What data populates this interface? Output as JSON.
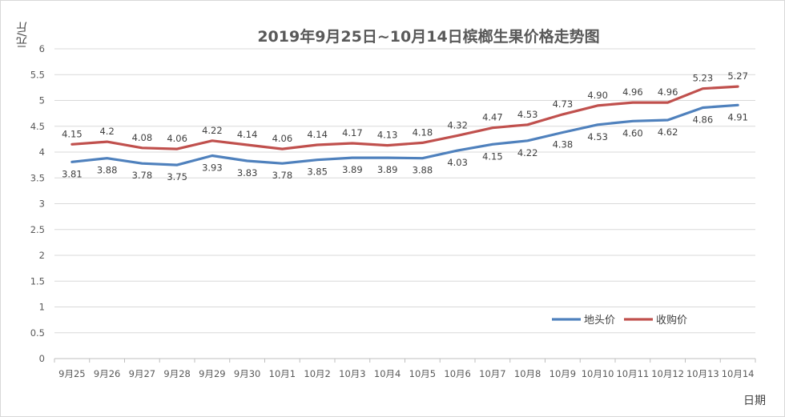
{
  "chart_data": {
    "type": "line",
    "title": "2019年9月25日~10月14日槟榔生果价格走势图",
    "xlabel": "日期",
    "ylabel": "元/斤",
    "ylim": [
      0,
      6
    ],
    "yticks": [
      "0",
      "0.5",
      "1",
      "1.5",
      "2",
      "2.5",
      "3",
      "3.5",
      "4",
      "4.5",
      "5",
      "5.5",
      "6"
    ],
    "grid": true,
    "legend_position": "bottom-right",
    "categories": [
      "9月25",
      "9月26",
      "9月27",
      "9月28",
      "9月29",
      "9月30",
      "10月1",
      "10月2",
      "10月3",
      "10月4",
      "10月5",
      "10月6",
      "10月7",
      "10月8",
      "10月9",
      "10月10",
      "10月11",
      "10月12",
      "10月13",
      "10月14"
    ],
    "series": [
      {
        "name": "地头价",
        "color": "#4f81bd",
        "values": [
          3.81,
          3.88,
          3.78,
          3.75,
          3.93,
          3.83,
          3.78,
          3.85,
          3.89,
          3.89,
          3.88,
          4.03,
          4.15,
          4.22,
          4.38,
          4.53,
          4.6,
          4.62,
          4.86,
          4.91
        ],
        "labels": [
          "3.81",
          "3.88",
          "3.78",
          "3.75",
          "3.93",
          "3.83",
          "3.78",
          "3.85",
          "3.89",
          "3.89",
          "3.88",
          "4.03",
          "4.15",
          "4.22",
          "4.38",
          "4.53",
          "4.60",
          "4.62",
          "4.86",
          "4.91"
        ]
      },
      {
        "name": "收购价",
        "color": "#c0504d",
        "values": [
          4.15,
          4.2,
          4.08,
          4.06,
          4.22,
          4.14,
          4.06,
          4.14,
          4.17,
          4.13,
          4.18,
          4.32,
          4.47,
          4.53,
          4.73,
          4.9,
          4.96,
          4.96,
          5.23,
          5.27
        ],
        "labels": [
          "4.15",
          "4.2",
          "4.08",
          "4.06",
          "4.22",
          "4.14",
          "4.06",
          "4.14",
          "4.17",
          "4.13",
          "4.18",
          "4.32",
          "4.47",
          "4.53",
          "4.73",
          "4.90",
          "4.96",
          "4.96",
          "5.23",
          "5.27"
        ]
      }
    ]
  }
}
